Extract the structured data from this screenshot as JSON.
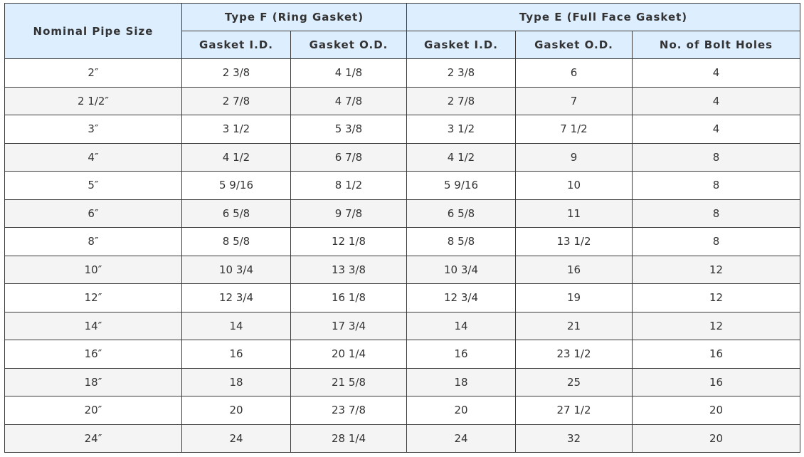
{
  "header": {
    "nominal_pipe_size": "Nominal Pipe Size",
    "type_f": "Type F (Ring Gasket)",
    "type_e": "Type E (Full Face Gasket)",
    "gasket_id": "Gasket I.D.",
    "gasket_od": "Gasket O.D.",
    "bolt_holes": "No. of Bolt Holes"
  },
  "rows": [
    [
      "2″",
      "2 3/8",
      "4 1/8",
      "2 3/8",
      "6",
      "4"
    ],
    [
      "2 1/2″",
      "2 7/8",
      "4 7/8",
      "2 7/8",
      "7",
      "4"
    ],
    [
      "3″",
      "3 1/2",
      "5 3/8",
      "3 1/2",
      "7 1/2",
      "4"
    ],
    [
      "4″",
      "4 1/2",
      "6 7/8",
      "4 1/2",
      "9",
      "8"
    ],
    [
      "5″",
      "5 9/16",
      "8 1/2",
      "5 9/16",
      "10",
      "8"
    ],
    [
      "6″",
      "6 5/8",
      "9 7/8",
      "6 5/8",
      "11",
      "8"
    ],
    [
      "8″",
      "8 5/8",
      "12 1/8",
      "8 5/8",
      "13 1/2",
      "8"
    ],
    [
      "10″",
      "10 3/4",
      "13 3/8",
      "10 3/4",
      "16",
      "12"
    ],
    [
      "12″",
      "12 3/4",
      "16 1/8",
      "12 3/4",
      "19",
      "12"
    ],
    [
      "14″",
      "14",
      "17 3/4",
      "14",
      "21",
      "12"
    ],
    [
      "16″",
      "16",
      "20 1/4",
      "16",
      "23 1/2",
      "16"
    ],
    [
      "18″",
      "18",
      "21 5/8",
      "18",
      "25",
      "16"
    ],
    [
      "20″",
      "20",
      "23 7/8",
      "20",
      "27 1/2",
      "20"
    ],
    [
      "24″",
      "24",
      "28 1/4",
      "24",
      "32",
      "20"
    ]
  ]
}
